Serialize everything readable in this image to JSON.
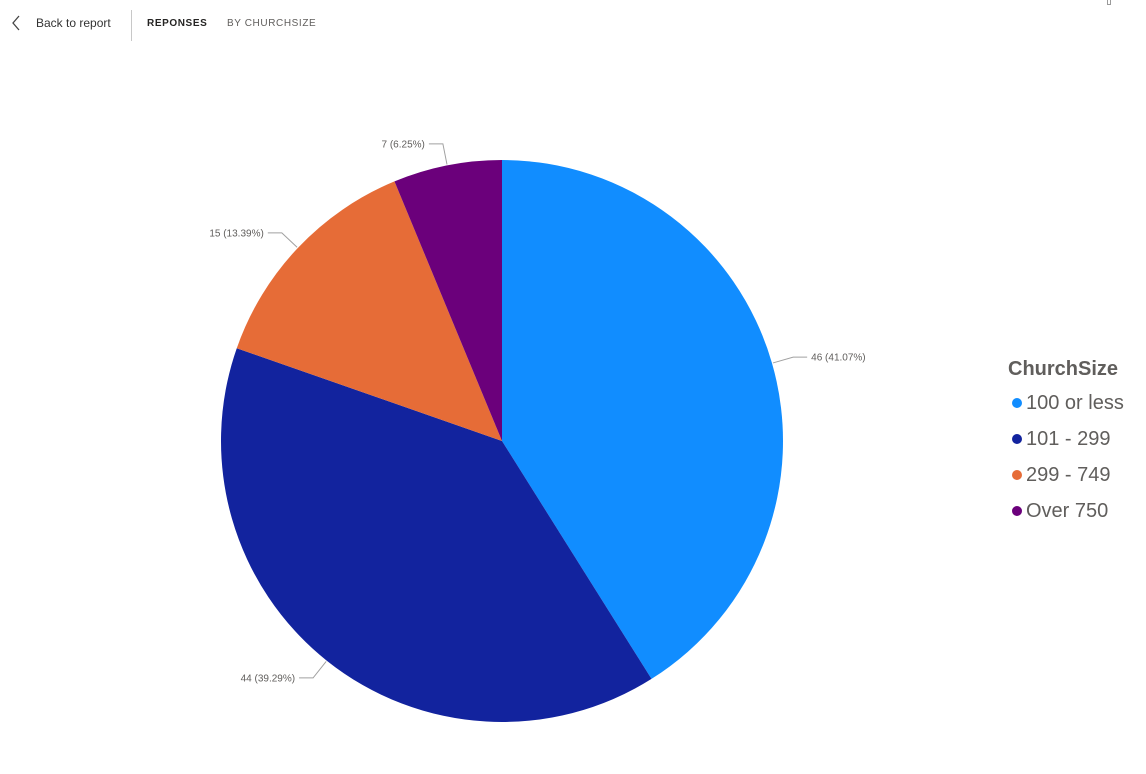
{
  "nav": {
    "back_label": "Back to report",
    "tabs": [
      "REPONSES",
      "BY CHURCHSIZE"
    ]
  },
  "chart_data": {
    "type": "pie",
    "legend_title": "ChurchSize",
    "legend_position": "right",
    "slices": [
      {
        "name": "100 or less",
        "value": 46,
        "percent": 41.07,
        "label": "46 (41.07%)",
        "color": "#118dff"
      },
      {
        "name": "101 - 299",
        "value": 44,
        "percent": 39.29,
        "label": "44 (39.29%)",
        "color": "#12239e"
      },
      {
        "name": "299 - 749",
        "value": 15,
        "percent": 13.39,
        "label": "15 (13.39%)",
        "color": "#e66c37"
      },
      {
        "name": "Over 750",
        "value": 7,
        "percent": 6.25,
        "label": "7 (6.25%)",
        "color": "#6b007b"
      }
    ]
  },
  "legend": {
    "title": "ChurchSize",
    "items": [
      {
        "label": "100 or less",
        "color": "#118dff"
      },
      {
        "label": "101 - 299",
        "color": "#12239e"
      },
      {
        "label": "299 - 749",
        "color": "#e66c37"
      },
      {
        "label": "Over 750",
        "color": "#6b007b"
      }
    ]
  }
}
